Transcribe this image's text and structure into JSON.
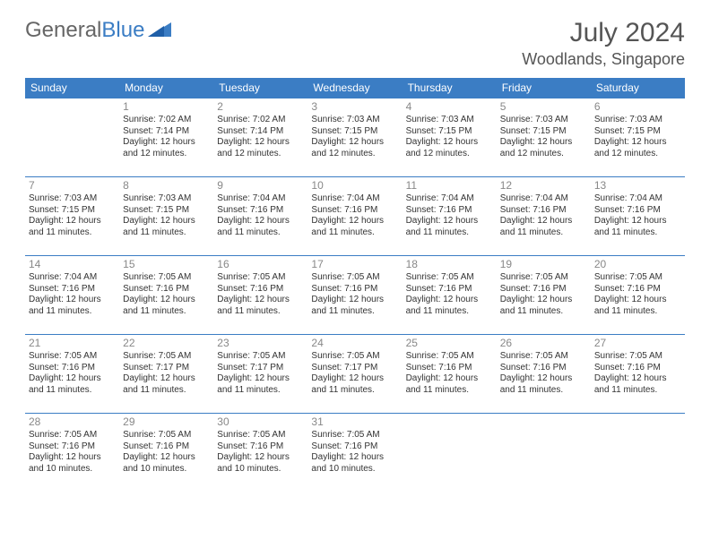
{
  "logo": {
    "text1": "General",
    "text2": "Blue"
  },
  "title": "July 2024",
  "location": "Woodlands, Singapore",
  "colors": {
    "header_bg": "#3b7dc4",
    "header_text": "#ffffff",
    "cell_border": "#3b7dc4",
    "daynum": "#888888",
    "body_text": "#333333",
    "title_text": "#555555",
    "logo_gray": "#666666",
    "logo_blue": "#3b7dc4",
    "background": "#ffffff"
  },
  "weekdays": [
    "Sunday",
    "Monday",
    "Tuesday",
    "Wednesday",
    "Thursday",
    "Friday",
    "Saturday"
  ],
  "weeks": [
    [
      null,
      {
        "d": "1",
        "sr": "Sunrise: 7:02 AM",
        "ss": "Sunset: 7:14 PM",
        "dl1": "Daylight: 12 hours",
        "dl2": "and 12 minutes."
      },
      {
        "d": "2",
        "sr": "Sunrise: 7:02 AM",
        "ss": "Sunset: 7:14 PM",
        "dl1": "Daylight: 12 hours",
        "dl2": "and 12 minutes."
      },
      {
        "d": "3",
        "sr": "Sunrise: 7:03 AM",
        "ss": "Sunset: 7:15 PM",
        "dl1": "Daylight: 12 hours",
        "dl2": "and 12 minutes."
      },
      {
        "d": "4",
        "sr": "Sunrise: 7:03 AM",
        "ss": "Sunset: 7:15 PM",
        "dl1": "Daylight: 12 hours",
        "dl2": "and 12 minutes."
      },
      {
        "d": "5",
        "sr": "Sunrise: 7:03 AM",
        "ss": "Sunset: 7:15 PM",
        "dl1": "Daylight: 12 hours",
        "dl2": "and 12 minutes."
      },
      {
        "d": "6",
        "sr": "Sunrise: 7:03 AM",
        "ss": "Sunset: 7:15 PM",
        "dl1": "Daylight: 12 hours",
        "dl2": "and 12 minutes."
      }
    ],
    [
      {
        "d": "7",
        "sr": "Sunrise: 7:03 AM",
        "ss": "Sunset: 7:15 PM",
        "dl1": "Daylight: 12 hours",
        "dl2": "and 11 minutes."
      },
      {
        "d": "8",
        "sr": "Sunrise: 7:03 AM",
        "ss": "Sunset: 7:15 PM",
        "dl1": "Daylight: 12 hours",
        "dl2": "and 11 minutes."
      },
      {
        "d": "9",
        "sr": "Sunrise: 7:04 AM",
        "ss": "Sunset: 7:16 PM",
        "dl1": "Daylight: 12 hours",
        "dl2": "and 11 minutes."
      },
      {
        "d": "10",
        "sr": "Sunrise: 7:04 AM",
        "ss": "Sunset: 7:16 PM",
        "dl1": "Daylight: 12 hours",
        "dl2": "and 11 minutes."
      },
      {
        "d": "11",
        "sr": "Sunrise: 7:04 AM",
        "ss": "Sunset: 7:16 PM",
        "dl1": "Daylight: 12 hours",
        "dl2": "and 11 minutes."
      },
      {
        "d": "12",
        "sr": "Sunrise: 7:04 AM",
        "ss": "Sunset: 7:16 PM",
        "dl1": "Daylight: 12 hours",
        "dl2": "and 11 minutes."
      },
      {
        "d": "13",
        "sr": "Sunrise: 7:04 AM",
        "ss": "Sunset: 7:16 PM",
        "dl1": "Daylight: 12 hours",
        "dl2": "and 11 minutes."
      }
    ],
    [
      {
        "d": "14",
        "sr": "Sunrise: 7:04 AM",
        "ss": "Sunset: 7:16 PM",
        "dl1": "Daylight: 12 hours",
        "dl2": "and 11 minutes."
      },
      {
        "d": "15",
        "sr": "Sunrise: 7:05 AM",
        "ss": "Sunset: 7:16 PM",
        "dl1": "Daylight: 12 hours",
        "dl2": "and 11 minutes."
      },
      {
        "d": "16",
        "sr": "Sunrise: 7:05 AM",
        "ss": "Sunset: 7:16 PM",
        "dl1": "Daylight: 12 hours",
        "dl2": "and 11 minutes."
      },
      {
        "d": "17",
        "sr": "Sunrise: 7:05 AM",
        "ss": "Sunset: 7:16 PM",
        "dl1": "Daylight: 12 hours",
        "dl2": "and 11 minutes."
      },
      {
        "d": "18",
        "sr": "Sunrise: 7:05 AM",
        "ss": "Sunset: 7:16 PM",
        "dl1": "Daylight: 12 hours",
        "dl2": "and 11 minutes."
      },
      {
        "d": "19",
        "sr": "Sunrise: 7:05 AM",
        "ss": "Sunset: 7:16 PM",
        "dl1": "Daylight: 12 hours",
        "dl2": "and 11 minutes."
      },
      {
        "d": "20",
        "sr": "Sunrise: 7:05 AM",
        "ss": "Sunset: 7:16 PM",
        "dl1": "Daylight: 12 hours",
        "dl2": "and 11 minutes."
      }
    ],
    [
      {
        "d": "21",
        "sr": "Sunrise: 7:05 AM",
        "ss": "Sunset: 7:16 PM",
        "dl1": "Daylight: 12 hours",
        "dl2": "and 11 minutes."
      },
      {
        "d": "22",
        "sr": "Sunrise: 7:05 AM",
        "ss": "Sunset: 7:17 PM",
        "dl1": "Daylight: 12 hours",
        "dl2": "and 11 minutes."
      },
      {
        "d": "23",
        "sr": "Sunrise: 7:05 AM",
        "ss": "Sunset: 7:17 PM",
        "dl1": "Daylight: 12 hours",
        "dl2": "and 11 minutes."
      },
      {
        "d": "24",
        "sr": "Sunrise: 7:05 AM",
        "ss": "Sunset: 7:17 PM",
        "dl1": "Daylight: 12 hours",
        "dl2": "and 11 minutes."
      },
      {
        "d": "25",
        "sr": "Sunrise: 7:05 AM",
        "ss": "Sunset: 7:16 PM",
        "dl1": "Daylight: 12 hours",
        "dl2": "and 11 minutes."
      },
      {
        "d": "26",
        "sr": "Sunrise: 7:05 AM",
        "ss": "Sunset: 7:16 PM",
        "dl1": "Daylight: 12 hours",
        "dl2": "and 11 minutes."
      },
      {
        "d": "27",
        "sr": "Sunrise: 7:05 AM",
        "ss": "Sunset: 7:16 PM",
        "dl1": "Daylight: 12 hours",
        "dl2": "and 11 minutes."
      }
    ],
    [
      {
        "d": "28",
        "sr": "Sunrise: 7:05 AM",
        "ss": "Sunset: 7:16 PM",
        "dl1": "Daylight: 12 hours",
        "dl2": "and 10 minutes."
      },
      {
        "d": "29",
        "sr": "Sunrise: 7:05 AM",
        "ss": "Sunset: 7:16 PM",
        "dl1": "Daylight: 12 hours",
        "dl2": "and 10 minutes."
      },
      {
        "d": "30",
        "sr": "Sunrise: 7:05 AM",
        "ss": "Sunset: 7:16 PM",
        "dl1": "Daylight: 12 hours",
        "dl2": "and 10 minutes."
      },
      {
        "d": "31",
        "sr": "Sunrise: 7:05 AM",
        "ss": "Sunset: 7:16 PM",
        "dl1": "Daylight: 12 hours",
        "dl2": "and 10 minutes."
      },
      null,
      null,
      null
    ]
  ]
}
